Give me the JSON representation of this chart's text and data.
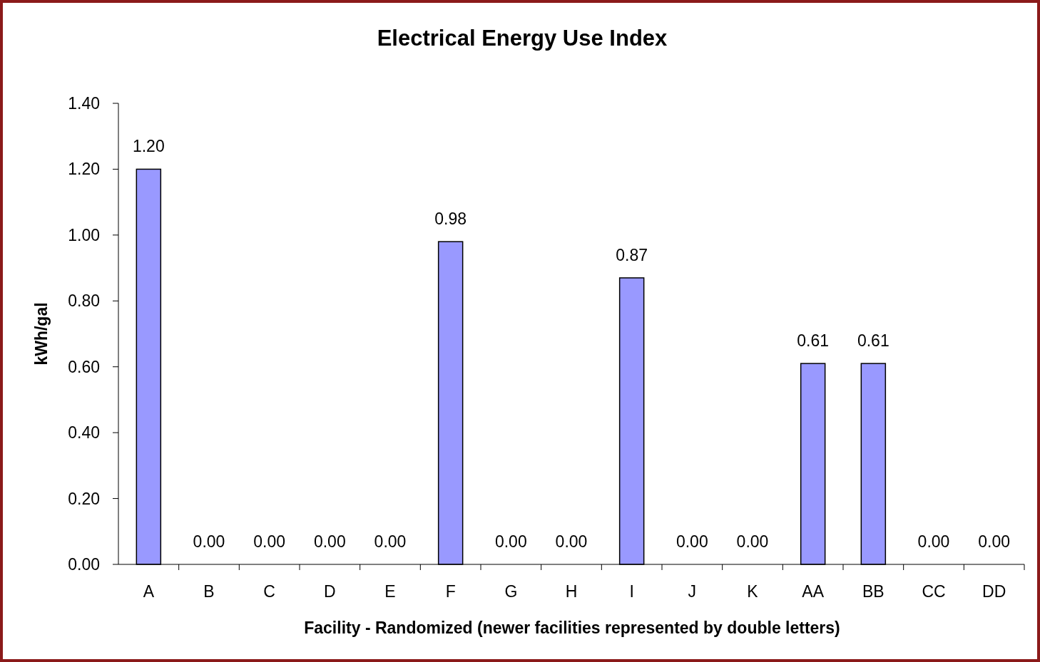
{
  "chart_data": {
    "type": "bar",
    "title": "Electrical Energy Use Index",
    "xlabel": "Facility - Randomized (newer facilities represented by double letters)",
    "ylabel": "kWh/gal",
    "categories": [
      "A",
      "B",
      "C",
      "D",
      "E",
      "F",
      "G",
      "H",
      "I",
      "J",
      "K",
      "AA",
      "BB",
      "CC",
      "DD"
    ],
    "values": [
      1.2,
      0,
      0,
      0,
      0,
      0.98,
      0,
      0,
      0.87,
      0,
      0,
      0.61,
      0.61,
      0,
      0
    ],
    "value_labels": [
      "1.20",
      "0.00",
      "0.00",
      "0.00",
      "0.00",
      "0.98",
      "0.00",
      "0.00",
      "0.87",
      "0.00",
      "0.00",
      "0.61",
      "0.61",
      "0.00",
      "0.00"
    ],
    "color": "#9999ff",
    "ylim": [
      0,
      1.4
    ],
    "yticks": [
      {
        "value": 0,
        "label": "0.00"
      },
      {
        "value": 0.2,
        "label": "0.20"
      },
      {
        "value": 0.4,
        "label": "0.40"
      },
      {
        "value": 0.6,
        "label": "0.60"
      },
      {
        "value": 0.8,
        "label": "0.80"
      },
      {
        "value": 1,
        "label": "1.00"
      },
      {
        "value": 1.2,
        "label": "1.20"
      },
      {
        "value": 1.4,
        "label": "1.40"
      }
    ],
    "grid": false
  }
}
